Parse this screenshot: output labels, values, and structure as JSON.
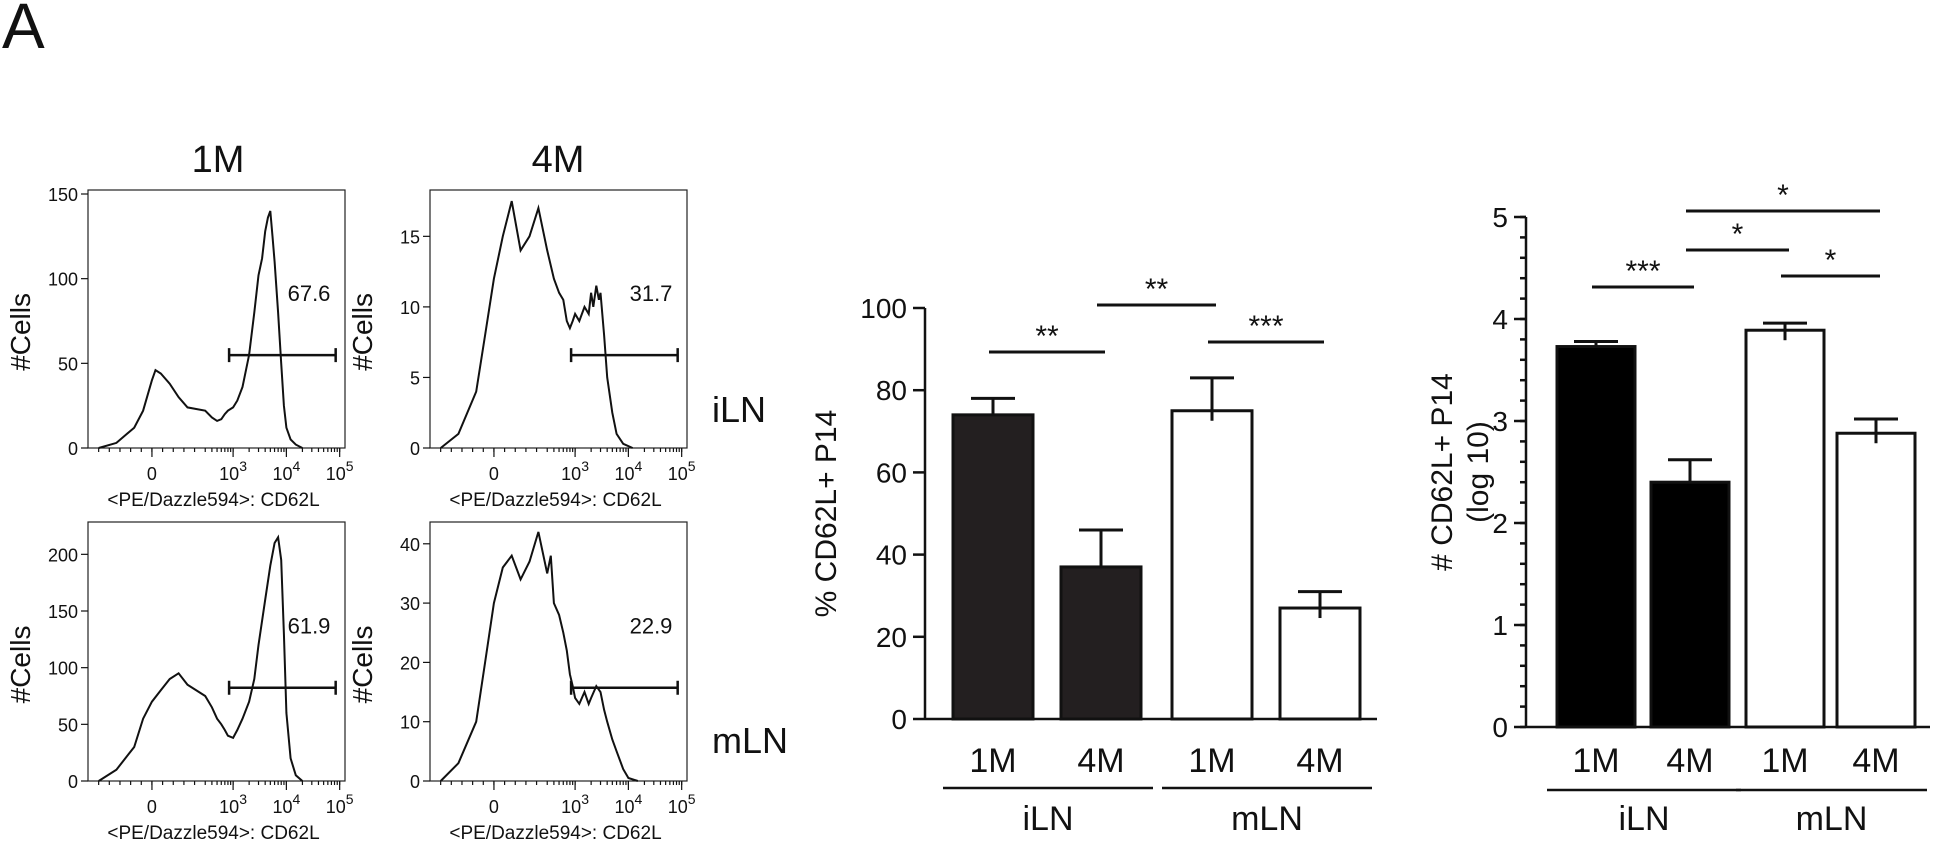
{
  "panel_label": "A",
  "sample_labels": {
    "row1": "iLN",
    "row2": "mLN"
  },
  "chart_data": [
    {
      "type": "histogram",
      "id": "hist-1m-iln",
      "title": "1M",
      "xlabel": "<PE/Dazzle594>: CD62L",
      "ylabel": "#Cells",
      "ylim": [
        0,
        150
      ],
      "yticks": [
        "0",
        "50",
        "100",
        "150"
      ],
      "xticks": [
        "0",
        "10^3",
        "10^4",
        "10^5"
      ],
      "xscale": "log",
      "gate_value": "67.6",
      "gate_range": [
        "10^3",
        "10^5"
      ],
      "curve": [
        [
          -300,
          0
        ],
        [
          -200,
          3
        ],
        [
          -100,
          12
        ],
        [
          -50,
          22
        ],
        [
          0,
          40
        ],
        [
          20,
          46
        ],
        [
          50,
          44
        ],
        [
          100,
          38
        ],
        [
          150,
          30
        ],
        [
          200,
          24
        ],
        [
          300,
          22
        ],
        [
          400,
          18
        ],
        [
          500,
          16
        ],
        [
          600,
          17
        ],
        [
          700,
          20
        ],
        [
          800,
          22
        ],
        [
          1000,
          24
        ],
        [
          1200,
          28
        ],
        [
          1500,
          36
        ],
        [
          2000,
          55
        ],
        [
          2500,
          80
        ],
        [
          3000,
          102
        ],
        [
          3500,
          112
        ],
        [
          4000,
          128
        ],
        [
          4500,
          136
        ],
        [
          5000,
          140
        ],
        [
          5500,
          125
        ],
        [
          6000,
          110
        ],
        [
          7000,
          80
        ],
        [
          8000,
          50
        ],
        [
          9000,
          25
        ],
        [
          10000,
          12
        ],
        [
          12000,
          5
        ],
        [
          15000,
          2
        ],
        [
          20000,
          0
        ]
      ]
    },
    {
      "type": "histogram",
      "id": "hist-4m-iln",
      "title": "4M",
      "xlabel": "<PE/Dazzle594>: CD62L",
      "ylabel": "#Cells",
      "ylim": [
        0,
        18
      ],
      "yticks": [
        "0",
        "5",
        "10",
        "15"
      ],
      "xticks": [
        "0",
        "10^3",
        "10^4",
        "10^5"
      ],
      "xscale": "log",
      "gate_value": "31.7",
      "gate_range": [
        "10^3",
        "10^5"
      ],
      "curve": [
        [
          -300,
          0
        ],
        [
          -200,
          1
        ],
        [
          -100,
          4
        ],
        [
          -50,
          8
        ],
        [
          0,
          12
        ],
        [
          50,
          15
        ],
        [
          100,
          17.5
        ],
        [
          150,
          14
        ],
        [
          200,
          15
        ],
        [
          250,
          17
        ],
        [
          300,
          14
        ],
        [
          400,
          12
        ],
        [
          500,
          11
        ],
        [
          600,
          10.5
        ],
        [
          700,
          9
        ],
        [
          800,
          8.5
        ],
        [
          900,
          9
        ],
        [
          1000,
          9.5
        ],
        [
          1200,
          9
        ],
        [
          1500,
          10
        ],
        [
          1800,
          9.5
        ],
        [
          2000,
          11
        ],
        [
          2200,
          10
        ],
        [
          2500,
          11.5
        ],
        [
          2800,
          10.5
        ],
        [
          3000,
          11
        ],
        [
          3500,
          8
        ],
        [
          4000,
          5
        ],
        [
          5000,
          2.5
        ],
        [
          6000,
          1
        ],
        [
          8000,
          0.3
        ],
        [
          12000,
          0
        ]
      ]
    },
    {
      "type": "histogram",
      "id": "hist-1m-mln",
      "title": "",
      "xlabel": "<PE/Dazzle594>: CD62L",
      "ylabel": "#Cells",
      "ylim": [
        0,
        225
      ],
      "yticks": [
        "0",
        "50",
        "100",
        "150",
        "200"
      ],
      "xticks": [
        "0",
        "10^3",
        "10^4",
        "10^5"
      ],
      "xscale": "log",
      "gate_value": "61.9",
      "gate_range": [
        "10^3",
        "10^5"
      ],
      "curve": [
        [
          -300,
          0
        ],
        [
          -200,
          10
        ],
        [
          -100,
          30
        ],
        [
          -50,
          55
        ],
        [
          0,
          70
        ],
        [
          50,
          80
        ],
        [
          100,
          90
        ],
        [
          150,
          95
        ],
        [
          200,
          85
        ],
        [
          300,
          75
        ],
        [
          400,
          65
        ],
        [
          500,
          55
        ],
        [
          600,
          50
        ],
        [
          700,
          45
        ],
        [
          800,
          40
        ],
        [
          1000,
          38
        ],
        [
          1200,
          45
        ],
        [
          1500,
          55
        ],
        [
          2000,
          70
        ],
        [
          2500,
          90
        ],
        [
          3000,
          120
        ],
        [
          4000,
          160
        ],
        [
          5000,
          190
        ],
        [
          6000,
          210
        ],
        [
          7000,
          215
        ],
        [
          8000,
          195
        ],
        [
          9000,
          130
        ],
        [
          10000,
          60
        ],
        [
          12000,
          20
        ],
        [
          15000,
          5
        ],
        [
          20000,
          0
        ]
      ]
    },
    {
      "type": "histogram",
      "id": "hist-4m-mln",
      "title": "",
      "xlabel": "<PE/Dazzle594>: CD62L",
      "ylabel": "#Cells",
      "ylim": [
        0,
        43
      ],
      "yticks": [
        "0",
        "10",
        "20",
        "30",
        "40"
      ],
      "xticks": [
        "0",
        "10^3",
        "10^4",
        "10^5"
      ],
      "xscale": "log",
      "gate_value": "22.9",
      "gate_range": [
        "10^3",
        "10^5"
      ],
      "curve": [
        [
          -300,
          0
        ],
        [
          -200,
          3
        ],
        [
          -100,
          10
        ],
        [
          -50,
          20
        ],
        [
          0,
          30
        ],
        [
          50,
          36
        ],
        [
          100,
          38
        ],
        [
          150,
          34
        ],
        [
          200,
          37
        ],
        [
          250,
          42
        ],
        [
          300,
          35
        ],
        [
          350,
          38
        ],
        [
          400,
          30
        ],
        [
          500,
          28
        ],
        [
          600,
          25
        ],
        [
          700,
          22
        ],
        [
          800,
          18
        ],
        [
          900,
          16
        ],
        [
          1000,
          14
        ],
        [
          1200,
          13
        ],
        [
          1500,
          15
        ],
        [
          1800,
          13
        ],
        [
          2000,
          14
        ],
        [
          2500,
          16
        ],
        [
          3000,
          15
        ],
        [
          3500,
          12
        ],
        [
          4000,
          10
        ],
        [
          5000,
          7
        ],
        [
          6000,
          5
        ],
        [
          8000,
          2
        ],
        [
          10000,
          0.5
        ],
        [
          15000,
          0
        ]
      ]
    },
    {
      "type": "bar",
      "id": "bar-percent",
      "title": "",
      "ylabel": "% CD62L+ P14",
      "ylim": [
        0,
        100
      ],
      "yticks": [
        0,
        20,
        40,
        60,
        80,
        100
      ],
      "categories": [
        "1M",
        "4M",
        "1M",
        "4M"
      ],
      "groups": [
        {
          "name": "iLN",
          "indices": [
            0,
            1
          ]
        },
        {
          "name": "mLN",
          "indices": [
            2,
            3
          ]
        }
      ],
      "values": [
        74,
        37,
        75,
        27
      ],
      "errors": [
        4,
        9,
        8,
        4
      ],
      "fills": [
        "#231f20",
        "#231f20",
        "#ffffff",
        "#ffffff"
      ],
      "significance": [
        {
          "from": 0,
          "to": 1,
          "label": "**"
        },
        {
          "from": 1,
          "to": 2,
          "label": "**"
        },
        {
          "from": 2,
          "to": 3,
          "label": "***"
        }
      ]
    },
    {
      "type": "bar",
      "id": "bar-count",
      "title": "",
      "ylabel": "# CD62L+ P14",
      "ylabel2": "(log 10)",
      "ylim": [
        0,
        5
      ],
      "yticks": [
        0,
        1,
        2,
        3,
        4,
        5
      ],
      "categories": [
        "1M",
        "4M",
        "1M",
        "4M"
      ],
      "groups": [
        {
          "name": "iLN",
          "indices": [
            0,
            1
          ]
        },
        {
          "name": "mLN",
          "indices": [
            2,
            3
          ]
        }
      ],
      "values": [
        3.73,
        2.4,
        3.89,
        2.88
      ],
      "errors": [
        0.05,
        0.22,
        0.07,
        0.14
      ],
      "fills": [
        "#000000",
        "#000000",
        "#ffffff",
        "#ffffff"
      ],
      "significance": [
        {
          "from": 0,
          "to": 1,
          "label": "***"
        },
        {
          "from": 1,
          "to": 2,
          "label": "*"
        },
        {
          "from": 2,
          "to": 3,
          "label": "*"
        },
        {
          "from": 1,
          "to": 3,
          "label": "*"
        }
      ]
    }
  ]
}
